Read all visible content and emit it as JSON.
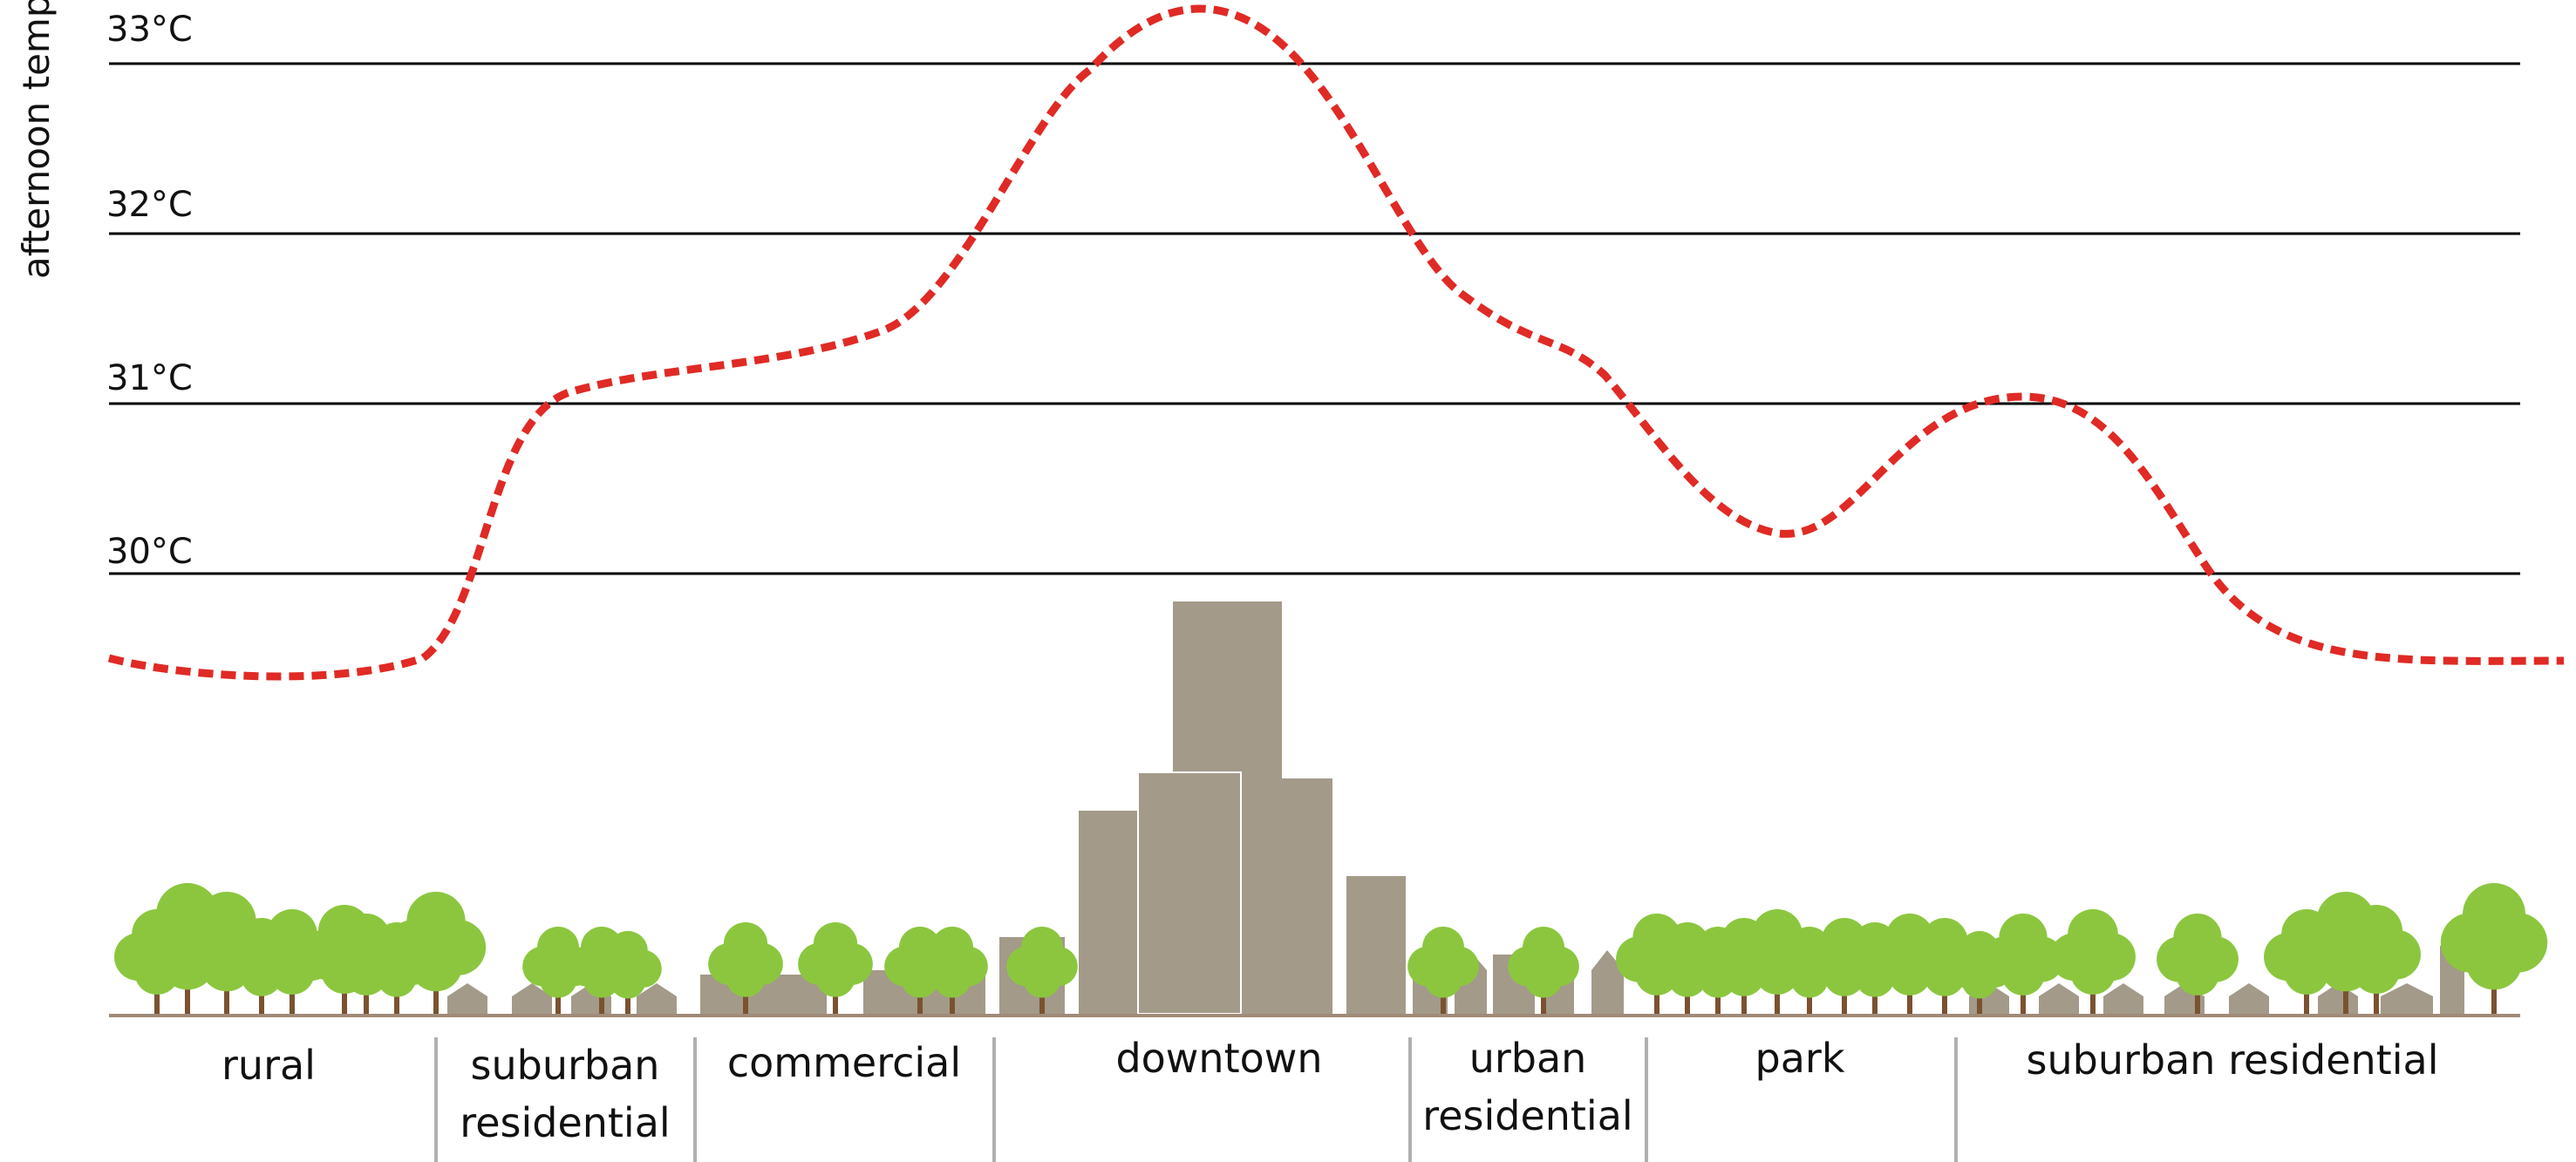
{
  "y_axis_label": "afternoon temperature",
  "temperature_ticks": [
    {
      "label": "33°C",
      "value": 33
    },
    {
      "label": "32°C",
      "value": 32
    },
    {
      "label": "31°C",
      "value": 31
    },
    {
      "label": "30°C",
      "value": 30
    }
  ],
  "zones": [
    {
      "name": "rural",
      "lines": [
        "rural"
      ]
    },
    {
      "name": "suburban-residential-left",
      "lines": [
        "suburban",
        "residential"
      ]
    },
    {
      "name": "commercial",
      "lines": [
        "commercial"
      ]
    },
    {
      "name": "downtown",
      "lines": [
        "downtown"
      ]
    },
    {
      "name": "urban-residential",
      "lines": [
        "urban",
        "residential"
      ]
    },
    {
      "name": "park",
      "lines": [
        "park"
      ]
    },
    {
      "name": "suburban-residential-right",
      "lines": [
        "suburban residential"
      ]
    }
  ],
  "temperature_profile": [
    {
      "zone": "rural",
      "temp": 29.5
    },
    {
      "zone": "suburban residential",
      "temp": 31.0
    },
    {
      "zone": "commercial",
      "temp": 31.3
    },
    {
      "zone": "downtown",
      "temp": 33.3
    },
    {
      "zone": "urban residential",
      "temp": 31.3
    },
    {
      "zone": "park",
      "temp": 30.2
    },
    {
      "zone": "suburban residential",
      "temp": 31.0
    },
    {
      "zone": "suburban residential",
      "temp": 29.5
    }
  ],
  "colors": {
    "temperature_curve": "#e02a25",
    "building": "#a39a89",
    "tree_foliage": "#8cc63f",
    "tree_trunk": "#7a5230",
    "ground": "#a08a78",
    "divider": "#b0b0b0",
    "gridline": "#000000"
  }
}
